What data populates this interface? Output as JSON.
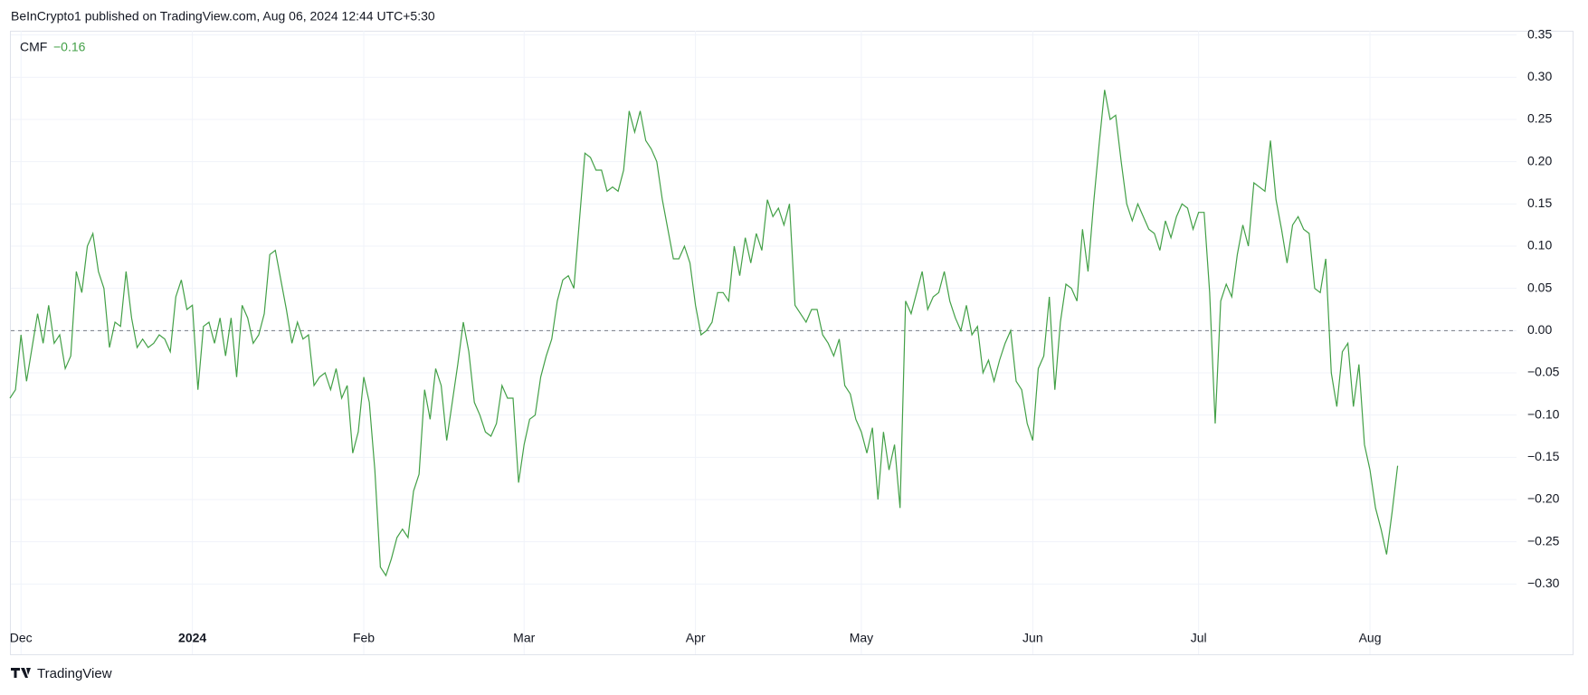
{
  "header": {
    "text": "BeInCrypto1 published on TradingView.com, Aug 06, 2024 12:44 UTC+5:30"
  },
  "footer": {
    "brand": "TradingView"
  },
  "chart_data": {
    "type": "line",
    "series": [
      {
        "name": "CMF",
        "color": "#43a047",
        "last_label": "−0.16",
        "values": [
          -0.08,
          -0.07,
          -0.005,
          -0.06,
          -0.02,
          0.02,
          -0.015,
          0.03,
          -0.015,
          -0.005,
          -0.045,
          -0.03,
          0.07,
          0.045,
          0.1,
          0.115,
          0.07,
          0.05,
          -0.02,
          0.01,
          0.005,
          0.07,
          0.015,
          -0.02,
          -0.01,
          -0.02,
          -0.015,
          -0.005,
          -0.01,
          -0.025,
          0.04,
          0.06,
          0.025,
          0.03,
          -0.07,
          0.005,
          0.01,
          -0.015,
          0.015,
          -0.03,
          0.015,
          -0.055,
          0.03,
          0.015,
          -0.015,
          -0.005,
          0.02,
          0.09,
          0.095,
          0.06,
          0.025,
          -0.015,
          0.01,
          -0.01,
          -0.005,
          -0.065,
          -0.055,
          -0.05,
          -0.07,
          -0.045,
          -0.08,
          -0.065,
          -0.145,
          -0.12,
          -0.055,
          -0.085,
          -0.165,
          -0.28,
          -0.29,
          -0.27,
          -0.245,
          -0.235,
          -0.245,
          -0.19,
          -0.17,
          -0.07,
          -0.105,
          -0.045,
          -0.065,
          -0.13,
          -0.085,
          -0.04,
          0.01,
          -0.025,
          -0.085,
          -0.1,
          -0.12,
          -0.125,
          -0.11,
          -0.065,
          -0.08,
          -0.08,
          -0.18,
          -0.135,
          -0.105,
          -0.1,
          -0.055,
          -0.03,
          -0.01,
          0.035,
          0.06,
          0.065,
          0.05,
          0.13,
          0.21,
          0.205,
          0.19,
          0.19,
          0.165,
          0.17,
          0.165,
          0.19,
          0.26,
          0.235,
          0.26,
          0.225,
          0.215,
          0.2,
          0.155,
          0.12,
          0.085,
          0.085,
          0.1,
          0.08,
          0.03,
          -0.005,
          0.0,
          0.01,
          0.045,
          0.045,
          0.035,
          0.1,
          0.065,
          0.11,
          0.08,
          0.115,
          0.095,
          0.155,
          0.135,
          0.145,
          0.125,
          0.15,
          0.03,
          0.02,
          0.01,
          0.025,
          0.025,
          -0.005,
          -0.015,
          -0.03,
          -0.01,
          -0.065,
          -0.075,
          -0.105,
          -0.12,
          -0.145,
          -0.115,
          -0.2,
          -0.12,
          -0.165,
          -0.135,
          -0.21,
          0.035,
          0.02,
          0.045,
          0.07,
          0.025,
          0.04,
          0.045,
          0.07,
          0.035,
          0.015,
          0.0,
          0.03,
          -0.005,
          0.005,
          -0.05,
          -0.035,
          -0.06,
          -0.035,
          -0.015,
          0.0,
          -0.06,
          -0.07,
          -0.11,
          -0.13,
          -0.045,
          -0.03,
          0.04,
          -0.07,
          0.01,
          0.055,
          0.05,
          0.035,
          0.12,
          0.07,
          0.15,
          0.22,
          0.285,
          0.25,
          0.255,
          0.2,
          0.15,
          0.13,
          0.15,
          0.135,
          0.12,
          0.115,
          0.095,
          0.13,
          0.11,
          0.135,
          0.15,
          0.145,
          0.12,
          0.14,
          0.14,
          0.045,
          -0.11,
          0.035,
          0.055,
          0.04,
          0.09,
          0.125,
          0.1,
          0.175,
          0.17,
          0.165,
          0.225,
          0.155,
          0.12,
          0.08,
          0.125,
          0.135,
          0.12,
          0.115,
          0.05,
          0.045,
          0.085,
          -0.05,
          -0.09,
          -0.025,
          -0.015,
          -0.09,
          -0.04,
          -0.135,
          -0.165,
          -0.21,
          -0.235,
          -0.265,
          -0.215,
          -0.16
        ]
      }
    ],
    "categories": [
      null,
      null,
      "Dec",
      null,
      null,
      null,
      null,
      null,
      null,
      null,
      null,
      null,
      null,
      null,
      null,
      null,
      null,
      null,
      null,
      null,
      null,
      null,
      null,
      null,
      null,
      null,
      null,
      null,
      null,
      null,
      null,
      null,
      null,
      "2024",
      null,
      null,
      null,
      null,
      null,
      null,
      null,
      null,
      null,
      null,
      null,
      null,
      null,
      null,
      null,
      null,
      null,
      null,
      null,
      null,
      null,
      null,
      null,
      null,
      null,
      null,
      null,
      null,
      null,
      null,
      "Feb",
      null,
      null,
      null,
      null,
      null,
      null,
      null,
      null,
      null,
      null,
      null,
      null,
      null,
      null,
      null,
      null,
      null,
      null,
      null,
      null,
      null,
      null,
      null,
      null,
      null,
      null,
      null,
      null,
      "Mar",
      null,
      null,
      null,
      null,
      null,
      null,
      null,
      null,
      null,
      null,
      null,
      null,
      null,
      null,
      null,
      null,
      null,
      null,
      null,
      null,
      null,
      null,
      null,
      null,
      null,
      null,
      null,
      null,
      null,
      null,
      "Apr",
      null,
      null,
      null,
      null,
      null,
      null,
      null,
      null,
      null,
      null,
      null,
      null,
      null,
      null,
      null,
      null,
      null,
      null,
      null,
      null,
      null,
      null,
      null,
      null,
      null,
      null,
      null,
      null,
      null,
      "May",
      null,
      null,
      null,
      null,
      null,
      null,
      null,
      null,
      null,
      null,
      null,
      null,
      null,
      null,
      null,
      null,
      null,
      null,
      null,
      null,
      null,
      null,
      null,
      null,
      null,
      null,
      null,
      null,
      null,
      null,
      "Jun",
      null,
      null,
      null,
      null,
      null,
      null,
      null,
      null,
      null,
      null,
      null,
      null,
      null,
      null,
      null,
      null,
      null,
      null,
      null,
      null,
      null,
      null,
      null,
      null,
      null,
      null,
      null,
      null,
      null,
      "Jul",
      null,
      null,
      null,
      null,
      null,
      null,
      null,
      null,
      null,
      null,
      null,
      null,
      null,
      null,
      null,
      null,
      null,
      null,
      null,
      null,
      null,
      null,
      null,
      null,
      null,
      null,
      null,
      null,
      null,
      null,
      "Aug",
      null,
      null,
      null,
      null,
      null
    ],
    "ylim": [
      -0.35,
      0.355
    ],
    "yticks": [
      {
        "value": -0.3,
        "label": "−0.30"
      },
      {
        "value": -0.25,
        "label": "−0.25"
      },
      {
        "value": -0.2,
        "label": "−0.20"
      },
      {
        "value": -0.15,
        "label": "−0.15"
      },
      {
        "value": -0.1,
        "label": "−0.10"
      },
      {
        "value": -0.05,
        "label": "−0.05"
      },
      {
        "value": 0,
        "label": "0.00"
      },
      0.05,
      {
        "value": 0.1,
        "label": "0.10"
      },
      0.15,
      {
        "value": 0.2,
        "label": "0.20"
      },
      0.25,
      {
        "value": 0.3,
        "label": "0.30"
      },
      0.35
    ],
    "grid": true,
    "zero_line": true
  }
}
